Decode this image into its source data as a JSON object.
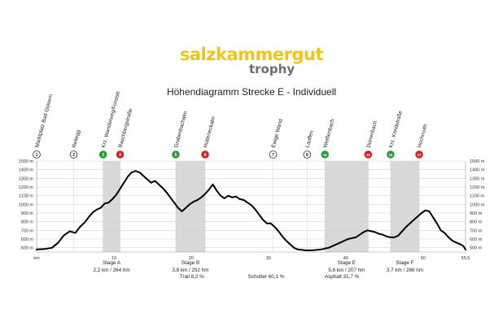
{
  "logo": {
    "main": "salzkammergut",
    "sub": "trophy"
  },
  "title": "Höhendiagramm Strecke E - Individuell",
  "chart_data": {
    "type": "area",
    "title": "Höhendiagramm Strecke E - Individuell",
    "xlabel": "km",
    "xlim": [
      0,
      55.5
    ],
    "ylim": [
      450,
      1500
    ],
    "y_unit": "m",
    "yticks": [
      500,
      600,
      700,
      800,
      900,
      1000,
      1100,
      1200,
      1300,
      1400,
      1500
    ],
    "xticks": [
      {
        "value": 0,
        "label": "km"
      },
      {
        "value": 10,
        "label": "10"
      },
      {
        "value": 20,
        "label": "20"
      },
      {
        "value": 30,
        "label": "30"
      },
      {
        "value": 40,
        "label": "40"
      },
      {
        "value": 50,
        "label": "50"
      },
      {
        "value": 55.5,
        "label": "55,5"
      }
    ],
    "grid": true,
    "line_color": "#000000",
    "shade_color": "#d9d9d9",
    "profile": {
      "x": [
        0,
        1,
        2,
        2.8,
        3.5,
        4.3,
        5,
        5.6,
        6.2,
        6.8,
        7.3,
        7.8,
        8.3,
        8.8,
        9.3,
        9.8,
        10.3,
        10.8,
        11.3,
        11.8,
        12.3,
        12.8,
        13.3,
        13.8,
        14.3,
        14.8,
        15.3,
        15.8,
        16.3,
        16.8,
        17.3,
        17.8,
        18.3,
        18.8,
        19.3,
        19.8,
        20.3,
        20.8,
        21.3,
        21.8,
        22.3,
        22.8,
        23.3,
        23.8,
        24.3,
        24.8,
        25.3,
        25.8,
        26.3,
        26.8,
        27.3,
        27.8,
        28.3,
        28.8,
        29.3,
        29.8,
        30.3,
        30.8,
        31.3,
        31.8,
        32.3,
        32.8,
        33.3,
        33.8,
        34.3,
        34.8,
        35.3,
        35.8,
        36.3,
        36.8,
        37.3,
        37.8,
        38.3,
        38.8,
        39.3,
        39.8,
        40.3,
        40.8,
        41.3,
        41.8,
        42.3,
        42.8,
        43.3,
        43.8,
        44.3,
        44.8,
        45.3,
        45.8,
        46.3,
        46.8,
        47.3,
        47.8,
        48.3,
        48.8,
        49.3,
        49.8,
        50.3,
        50.8,
        51.3,
        51.8,
        52.3,
        52.8,
        53.3,
        53.8,
        54.3,
        54.8,
        55.2,
        55.5
      ],
      "y": [
        480,
        485,
        500,
        560,
        640,
        690,
        670,
        740,
        790,
        860,
        910,
        940,
        960,
        1010,
        1020,
        1060,
        1110,
        1180,
        1250,
        1320,
        1370,
        1385,
        1370,
        1330,
        1290,
        1250,
        1270,
        1230,
        1190,
        1140,
        1080,
        1020,
        960,
        920,
        960,
        1000,
        1030,
        1050,
        1080,
        1120,
        1170,
        1230,
        1160,
        1100,
        1070,
        1100,
        1080,
        1090,
        1060,
        1050,
        1020,
        990,
        940,
        880,
        820,
        780,
        780,
        740,
        690,
        630,
        580,
        540,
        500,
        480,
        475,
        470,
        470,
        472,
        475,
        480,
        490,
        500,
        520,
        540,
        560,
        580,
        600,
        610,
        620,
        650,
        680,
        700,
        690,
        680,
        660,
        650,
        630,
        620,
        620,
        640,
        690,
        740,
        780,
        820,
        860,
        900,
        930,
        920,
        850,
        780,
        700,
        670,
        620,
        580,
        560,
        540,
        520,
        480
      ]
    },
    "stages": [
      {
        "name": "Stage A",
        "detail": "2,2 km / 264 hm",
        "x": [
          8.6,
          10.8
        ]
      },
      {
        "name": "Stage B",
        "detail": "3,8 km / 292 hm",
        "x": [
          18.0,
          21.8
        ]
      },
      {
        "name": "Stage E",
        "detail": "5,6 km / 207 hm",
        "x": [
          37.3,
          42.9
        ]
      },
      {
        "name": "Stage F",
        "detail": "3,7 km / 266 hm",
        "x": [
          45.8,
          49.5
        ]
      }
    ],
    "markers": [
      {
        "num": "1",
        "x": 0,
        "color": "white",
        "label": "Marktplatz Bad Goisern"
      },
      {
        "num": "2",
        "x": 4.8,
        "color": "white",
        "label": "Reitegg"
      },
      {
        "num": "3",
        "x": 8.6,
        "color": "green",
        "label": "Krz. Wanderweg/Forststr."
      },
      {
        "num": "4",
        "x": 10.8,
        "color": "red",
        "label": "Raschbergstraße"
      },
      {
        "num": "5",
        "x": 18.0,
        "color": "green",
        "label": "Grabenbachalm"
      },
      {
        "num": "6",
        "x": 21.8,
        "color": "red",
        "label": "Hütteneckalm"
      },
      {
        "num": "7",
        "x": 30.6,
        "color": "white",
        "label": "Ewige Wand"
      },
      {
        "num": "8",
        "x": 35.0,
        "color": "white",
        "label": "Lauffen"
      },
      {
        "num": "14",
        "x": 37.3,
        "color": "green",
        "label": "Weißenbach"
      },
      {
        "num": "15",
        "x": 42.9,
        "color": "red",
        "label": "Dürrenbach"
      },
      {
        "num": "16",
        "x": 45.8,
        "color": "green",
        "label": "Krz. Kreidstraße"
      },
      {
        "num": "17",
        "x": 49.5,
        "color": "red",
        "label": "Hochmuth"
      }
    ],
    "surface": [
      {
        "label": "Trail 8,2 %",
        "x": 20.1
      },
      {
        "label": "Schotter 60,1 %",
        "x": 29.7
      },
      {
        "label": "Asphalt 31,7 %",
        "x": 39.5
      }
    ],
    "colors": {
      "green": "#2e9a3c",
      "red": "#d2232a",
      "white": "#ffffff"
    }
  }
}
